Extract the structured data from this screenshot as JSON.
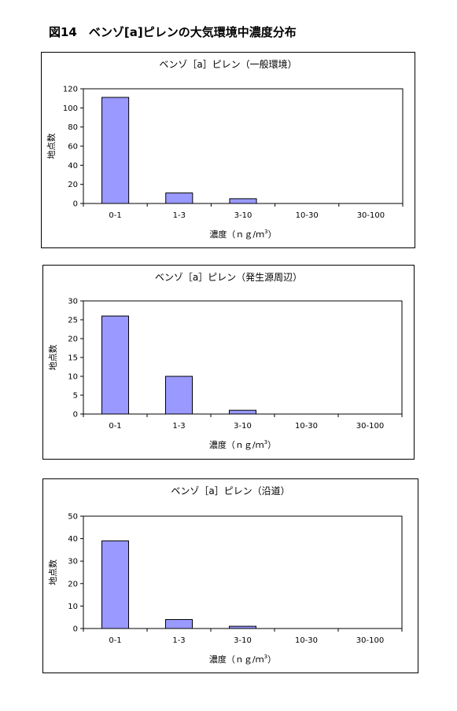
{
  "page_title": "図14　ベンゾ[a]ピレンの大気環境中濃度分布",
  "chart_data": [
    {
      "type": "bar",
      "title": "ベンゾ［a］ピレン（一般環境）",
      "xlabel": "濃度（ｎｇ/ｍ",
      "xlabel_sup": "3",
      "xlabel_close": "）",
      "ylabel": "地点数",
      "categories": [
        "0-1",
        "1-3",
        "3-10",
        "10-30",
        "30-100"
      ],
      "values": [
        111,
        11,
        5,
        0,
        0
      ],
      "ylim": [
        0,
        120
      ],
      "yticks": [
        0,
        20,
        40,
        60,
        80,
        100,
        120
      ],
      "bar_color": "#9999ff",
      "grid": false,
      "legend": false
    },
    {
      "type": "bar",
      "title": "ベンゾ［a］ピレン（発生源周辺）",
      "xlabel": "濃度（ｎｇ/ｍ",
      "xlabel_sup": "3",
      "xlabel_close": "）",
      "ylabel": "地点数",
      "categories": [
        "0-1",
        "1-3",
        "3-10",
        "10-30",
        "30-100"
      ],
      "values": [
        26,
        10,
        1,
        0,
        0
      ],
      "ylim": [
        0,
        30
      ],
      "yticks": [
        0,
        5,
        10,
        15,
        20,
        25,
        30
      ],
      "bar_color": "#9999ff",
      "grid": false,
      "legend": false
    },
    {
      "type": "bar",
      "title": "ベンゾ［a］ピレン（沿道）",
      "xlabel": "濃度（ｎｇ/ｍ",
      "xlabel_sup": "3",
      "xlabel_close": "）",
      "ylabel": "地点数",
      "categories": [
        "0-1",
        "1-3",
        "3-10",
        "10-30",
        "30-100"
      ],
      "values": [
        39,
        4,
        1,
        0,
        0
      ],
      "ylim": [
        0,
        50
      ],
      "yticks": [
        0,
        10,
        20,
        30,
        40,
        50
      ],
      "bar_color": "#9999ff",
      "grid": false,
      "legend": false
    }
  ]
}
